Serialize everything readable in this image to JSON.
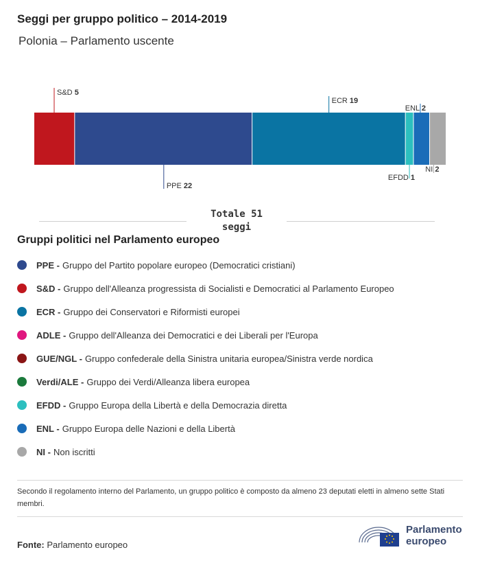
{
  "header": {
    "title": "Seggi per gruppo politico – 2014-2019",
    "subtitle": "Polonia – Parlamento uscente"
  },
  "chart_data": {
    "type": "bar",
    "orientation": "stacked-horizontal",
    "total": 51,
    "segments": [
      {
        "abbr": "S&D",
        "value": 5,
        "color": "#c0171e"
      },
      {
        "abbr": "PPE",
        "value": 22,
        "color": "#2e4a8e"
      },
      {
        "abbr": "ECR",
        "value": 19,
        "color": "#0a74a3"
      },
      {
        "abbr": "EFDD",
        "value": 1,
        "color": "#2cbfbf"
      },
      {
        "abbr": "ENL",
        "value": 2,
        "color": "#1a6cb8"
      },
      {
        "abbr": "NI",
        "value": 2,
        "color": "#a8a8a8"
      }
    ]
  },
  "total_label": {
    "line1": "Totale 51",
    "line2": "seggi"
  },
  "legend": {
    "title": "Gruppi politici nel Parlamento europeo",
    "items": [
      {
        "abbr": "PPE -",
        "text": "Gruppo del Partito popolare europeo (Democratici cristiani)",
        "color": "#2e4a8e"
      },
      {
        "abbr": "S&D -",
        "text": "Gruppo dell'Alleanza progressista di Socialisti e Democratici al Parlamento Europeo",
        "color": "#c0171e"
      },
      {
        "abbr": "ECR -",
        "text": "Gruppo dei Conservatori e Riformisti europei",
        "color": "#0a74a3"
      },
      {
        "abbr": "ADLE -",
        "text": "Gruppo dell'Alleanza dei Democratici e dei Liberali per l'Europa",
        "color": "#e0177f"
      },
      {
        "abbr": "GUE/NGL -",
        "text": "Gruppo confederale della Sinistra unitaria europea/Sinistra verde nordica",
        "color": "#8a1515"
      },
      {
        "abbr": "Verdi/ALE -",
        "text": "Gruppo dei Verdi/Alleanza libera europea",
        "color": "#1b7a3c"
      },
      {
        "abbr": "EFDD -",
        "text": "Gruppo Europa della Libertà e della Democrazia diretta",
        "color": "#2cbfbf"
      },
      {
        "abbr": "ENL -",
        "text": "Gruppo Europa delle Nazioni e della Libertà",
        "color": "#1a6cb8"
      },
      {
        "abbr": "NI -",
        "text": "Non iscritti",
        "color": "#a8a8a8"
      }
    ]
  },
  "note": "Secondo il regolamento interno del Parlamento, un gruppo politico è composto da almeno 23 deputati eletti in almeno sette Stati membri.",
  "source": {
    "label": "Fonte:",
    "text": "Parlamento europeo"
  },
  "logo": {
    "line1": "Parlamento",
    "line2": "europeo",
    "color": "#3a4a6e"
  }
}
